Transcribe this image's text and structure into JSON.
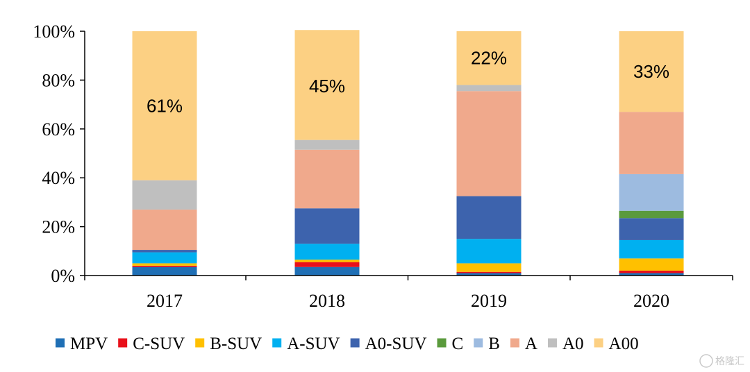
{
  "chart_data": {
    "type": "bar",
    "stacked": true,
    "categories": [
      "2017",
      "2018",
      "2019",
      "2020"
    ],
    "ylim": [
      0,
      100
    ],
    "y_ticks": [
      "0%",
      "20%",
      "40%",
      "60%",
      "80%",
      "100%"
    ],
    "legend_position": "bottom",
    "grid": false,
    "series": [
      {
        "name": "MPV",
        "color": "#1f6fb5",
        "values": [
          3.5,
          3.5,
          1.0,
          1.0
        ]
      },
      {
        "name": "C-SUV",
        "color": "#e8101a",
        "values": [
          0.5,
          2.0,
          0.5,
          1.0
        ]
      },
      {
        "name": "B-SUV",
        "color": "#ffc000",
        "values": [
          1.0,
          1.0,
          3.5,
          5.0
        ]
      },
      {
        "name": "A-SUV",
        "color": "#00b0f0",
        "values": [
          4.5,
          6.5,
          10.0,
          7.5
        ]
      },
      {
        "name": "A0-SUV",
        "color": "#3d63ad",
        "values": [
          1.0,
          14.5,
          17.5,
          9.0
        ]
      },
      {
        "name": "C",
        "color": "#5a9a3c",
        "values": [
          0,
          0,
          0,
          3.0
        ]
      },
      {
        "name": "B",
        "color": "#9dbbe0",
        "values": [
          0,
          0,
          0,
          15.0
        ]
      },
      {
        "name": "A",
        "color": "#f0a98c",
        "values": [
          16.5,
          24.0,
          43.0,
          25.5
        ]
      },
      {
        "name": "A0",
        "color": "#bfbfbf",
        "values": [
          12.0,
          4.0,
          2.5,
          0
        ]
      },
      {
        "name": "A00",
        "color": "#fcd083",
        "values": [
          61.0,
          45.0,
          22.0,
          33.0
        ]
      }
    ],
    "data_labels": [
      "61%",
      "45%",
      "22%",
      "33%"
    ]
  },
  "watermark": "格隆汇"
}
